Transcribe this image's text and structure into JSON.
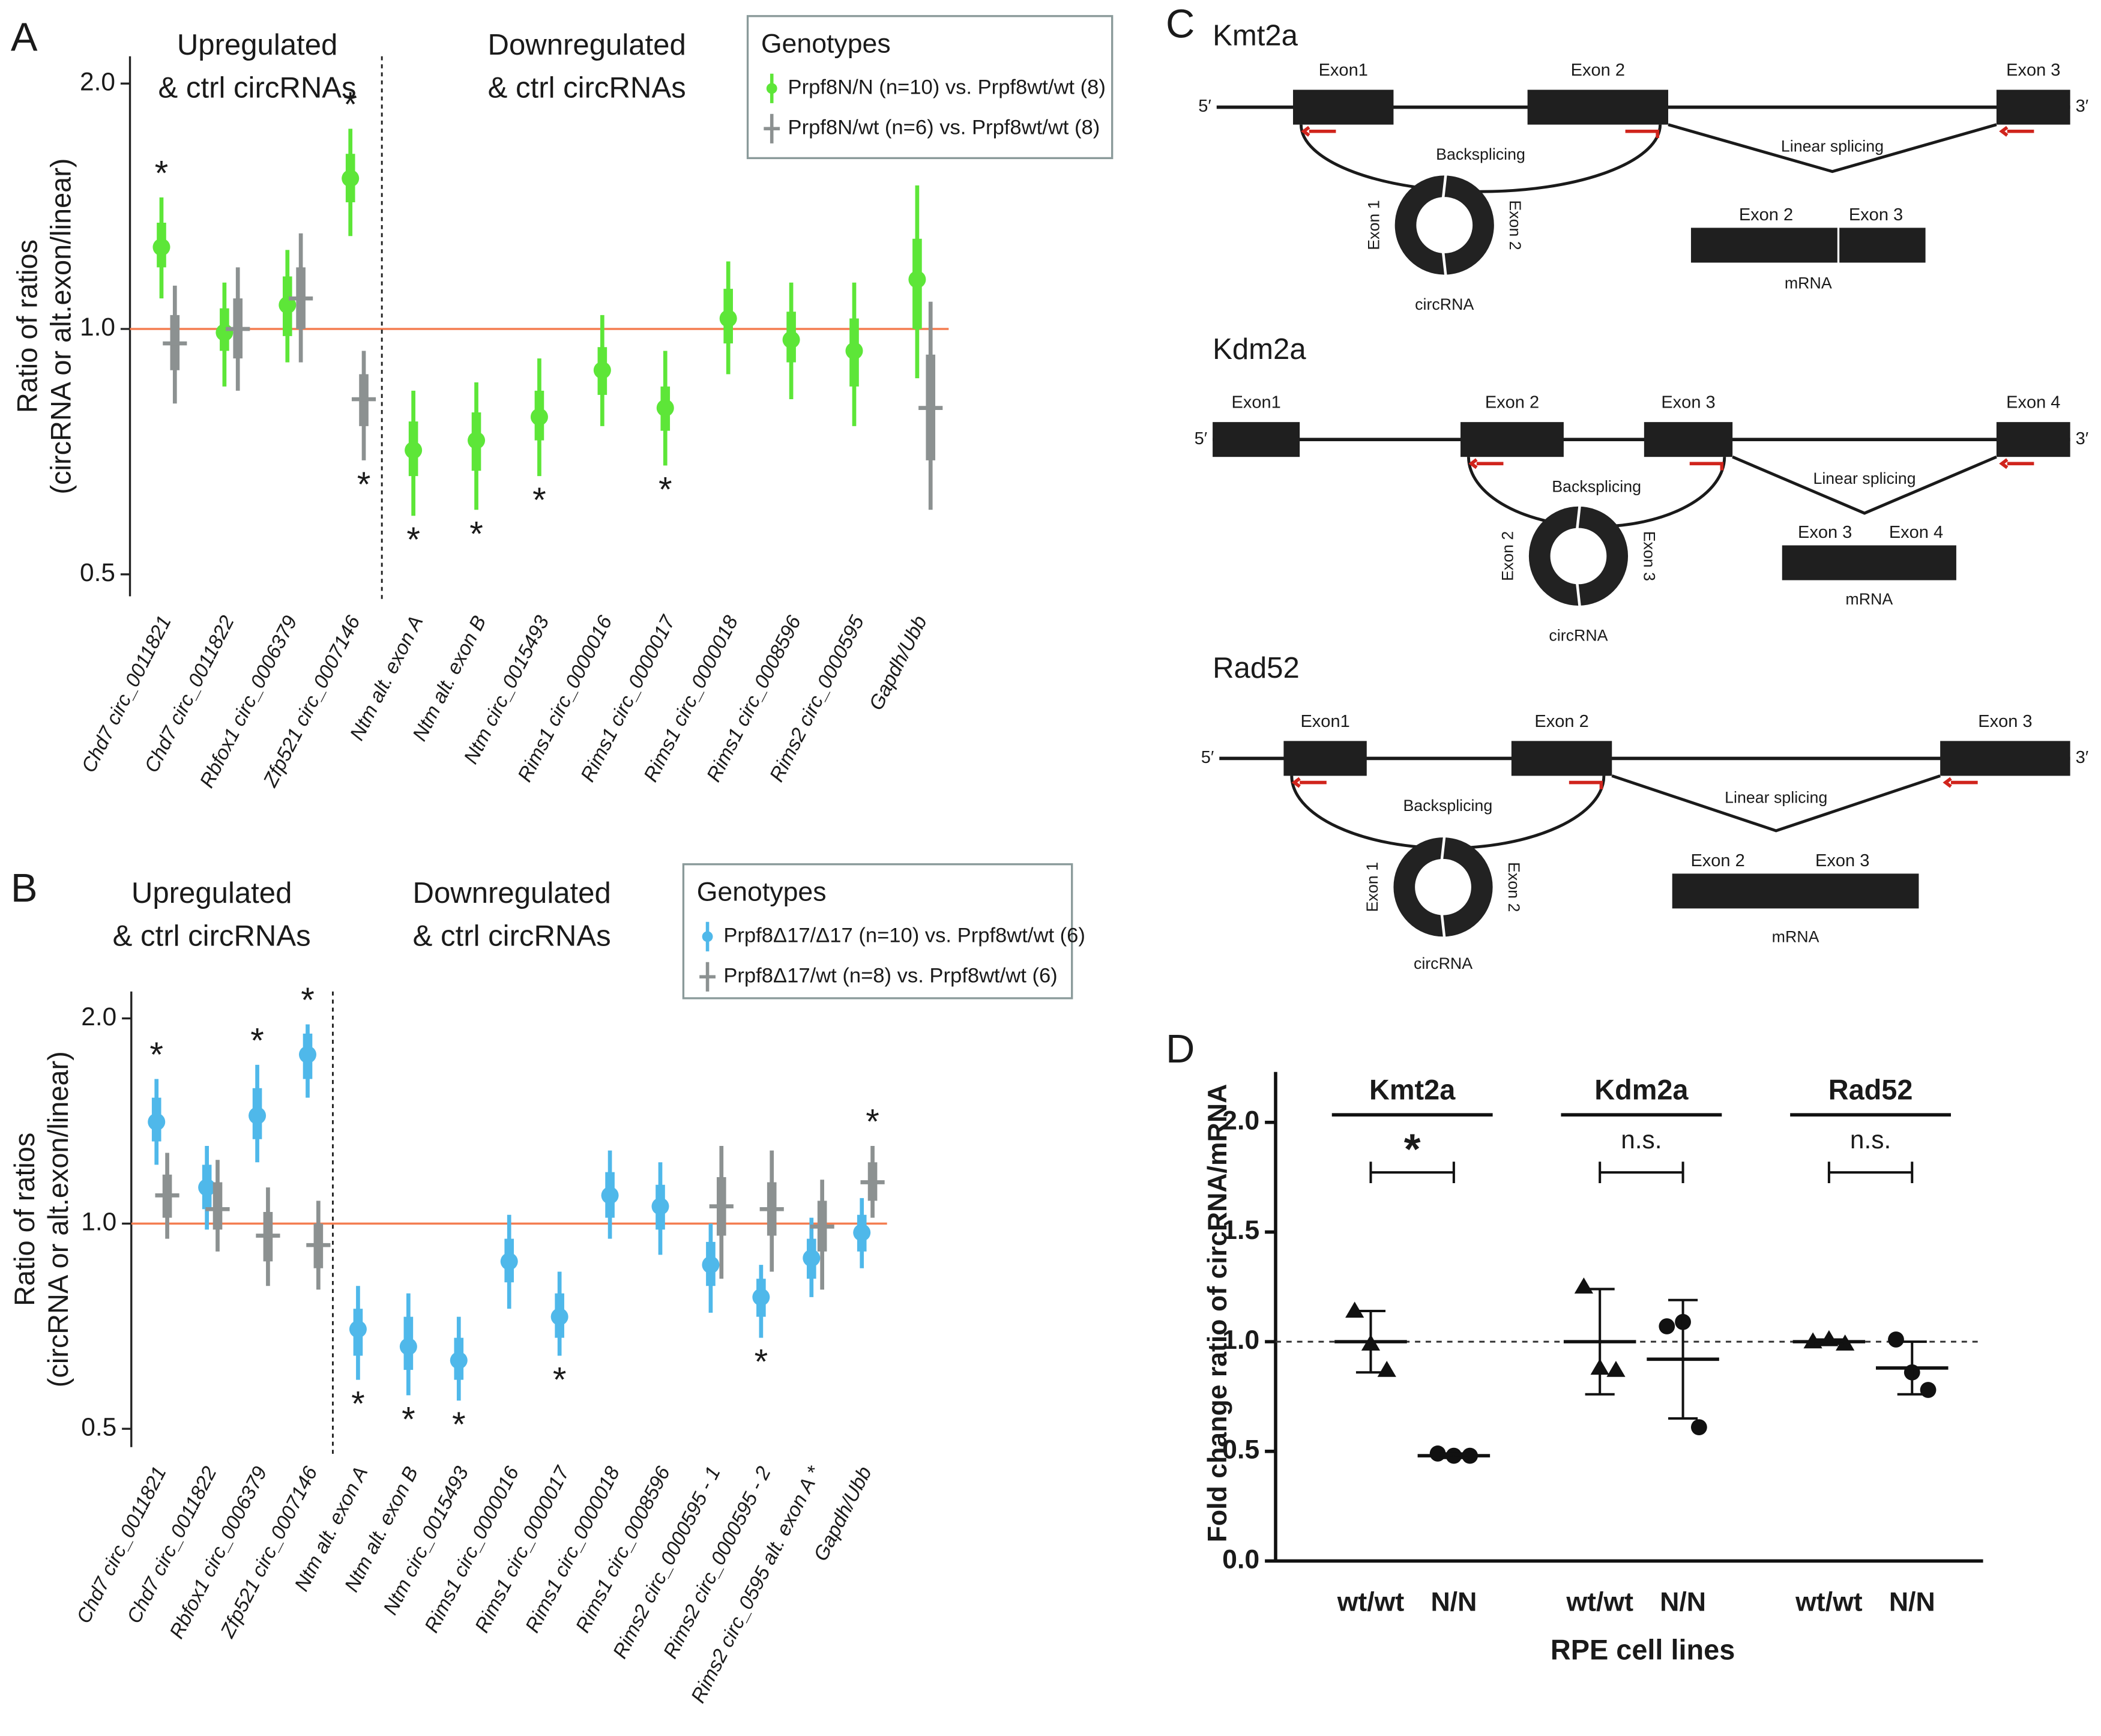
{
  "chart_data": [
    {
      "type": "interval",
      "panel": "A",
      "ylabel": [
        "Ratio of ratios",
        "(circRNA or alt.exon/linear)"
      ],
      "section_labels": [
        [
          "Upregulated",
          "& ctrl circRNAs"
        ],
        [
          "Downregulated",
          "& ctrl circRNAs"
        ]
      ],
      "categories": [
        "Chd7 circ_0011821",
        "Chd7 circ_0011822",
        "Rbfox1 circ_0006379",
        "Zfp521 circ_0007146",
        "Ntm alt. exon A",
        "Ntm alt. exon B",
        "Ntm circ_0015493",
        "Rims1 circ_0000016",
        "Rims1 circ_0000017",
        "Rims1 circ_0000018",
        "Rims1 circ_0008596",
        "Rims2 circ_0000595",
        "Gapdh/Ubb"
      ],
      "log_y": true,
      "ylim": [
        0.47,
        2.16
      ],
      "yticks": [
        0.5,
        {
          "value": 1,
          "label": "1.0"
        },
        {
          "value": 2,
          "label": "2.0"
        }
      ],
      "refline": 1,
      "refline_color": "#f47d50",
      "legend_title": "Genotypes",
      "legend": "upper right",
      "series": [
        {
          "name": "Prpf8N/N (n=10) vs. Prpf8wt/wt (8)",
          "color": "#5de638",
          "marker": "dot",
          "values": [
            1.26,
            0.99,
            1.07,
            1.53,
            0.71,
            0.73,
            0.78,
            0.89,
            0.8,
            1.03,
            0.97,
            0.94,
            1.15
          ],
          "inner": [
            [
              1.19,
              1.35
            ],
            [
              0.94,
              1.06
            ],
            [
              0.98,
              1.16
            ],
            [
              1.43,
              1.64
            ],
            [
              0.66,
              0.77
            ],
            [
              0.67,
              0.79
            ],
            [
              0.73,
              0.84
            ],
            [
              0.83,
              0.95
            ],
            [
              0.75,
              0.85
            ],
            [
              0.96,
              1.12
            ],
            [
              0.91,
              1.05
            ],
            [
              0.85,
              1.03
            ],
            [
              1.0,
              1.29
            ]
          ],
          "outer": [
            [
              1.09,
              1.45
            ],
            [
              0.85,
              1.14
            ],
            [
              0.91,
              1.25
            ],
            [
              1.3,
              1.76
            ],
            [
              0.59,
              0.84
            ],
            [
              0.6,
              0.86
            ],
            [
              0.66,
              0.92
            ],
            [
              0.76,
              1.04
            ],
            [
              0.68,
              0.94
            ],
            [
              0.88,
              1.21
            ],
            [
              0.82,
              1.14
            ],
            [
              0.76,
              1.14
            ],
            [
              0.87,
              1.5
            ]
          ],
          "labels": [
            "*",
            null,
            null,
            "*",
            "*",
            "*",
            "*",
            null,
            "*",
            null,
            null,
            null,
            null
          ]
        },
        {
          "name": "Prpf8N/wt (n=6) vs. Prpf8wt/wt (8)",
          "color": "#8c9191",
          "marker": "dash",
          "values": [
            0.96,
            1.0,
            1.09,
            0.82,
            null,
            null,
            null,
            null,
            null,
            null,
            null,
            null,
            0.8
          ],
          "inner": [
            [
              0.89,
              1.04
            ],
            [
              0.92,
              1.09
            ],
            [
              1.0,
              1.19
            ],
            [
              0.76,
              0.88
            ],
            null,
            null,
            null,
            null,
            null,
            null,
            null,
            null,
            [
              0.69,
              0.93
            ]
          ],
          "outer": [
            [
              0.81,
              1.13
            ],
            [
              0.84,
              1.19
            ],
            [
              0.91,
              1.31
            ],
            [
              0.69,
              0.94
            ],
            null,
            null,
            null,
            null,
            null,
            null,
            null,
            null,
            [
              0.6,
              1.08
            ]
          ],
          "labels": [
            null,
            null,
            null,
            "*",
            null,
            null,
            null,
            null,
            null,
            null,
            null,
            null,
            null
          ]
        }
      ]
    },
    {
      "type": "interval",
      "panel": "B",
      "ylabel": [
        "Ratio of ratios",
        "(circRNA or alt.exon/linear)"
      ],
      "section_labels": [
        [
          "Upregulated",
          "& ctrl circRNAs"
        ],
        [
          "Downregulated",
          "& ctrl circRNAs"
        ]
      ],
      "categories": [
        "Chd7 circ_0011821",
        "Chd7 circ_0011822",
        "Rbfox1 circ_0006379",
        "Zfp521 circ_0007146",
        "Ntm alt. exon A",
        "Ntm alt. exon B",
        "Ntm circ_0015493",
        "Rims1 circ_0000016",
        "Rims1 circ_0000017",
        "Rims1 circ_0000018",
        "Rims1 circ_0008596",
        "Rims2 circ_0000595 - 1",
        "Rims2 circ_0000595 - 2",
        "Rims2 circ_0595 alt. exon A *",
        "Gapdh/Ubb"
      ],
      "log_y": true,
      "ylim": [
        0.47,
        2.19
      ],
      "yticks": [
        0.5,
        {
          "value": 1,
          "label": "1.0"
        },
        {
          "value": 2,
          "label": "2.0"
        }
      ],
      "refline": 1,
      "refline_color": "#f47d50",
      "legend_title": "Genotypes",
      "legend": "upper right",
      "series": [
        {
          "name": "Prpf8Δ17/Δ17 (n=10) vs. Prpf8wt/wt (6)",
          "color": "#4fb8ea",
          "marker": "dot",
          "values": [
            1.41,
            1.13,
            1.44,
            1.77,
            0.7,
            0.66,
            0.63,
            0.88,
            0.73,
            1.1,
            1.06,
            0.87,
            0.78,
            0.89,
            0.97
          ],
          "inner": [
            [
              1.32,
              1.53
            ],
            [
              1.05,
              1.22
            ],
            [
              1.33,
              1.58
            ],
            [
              1.63,
              1.9
            ],
            [
              0.64,
              0.75
            ],
            [
              0.61,
              0.73
            ],
            [
              0.59,
              0.68
            ],
            [
              0.82,
              0.95
            ],
            [
              0.68,
              0.79
            ],
            [
              1.02,
              1.19
            ],
            [
              0.98,
              1.14
            ],
            [
              0.81,
              0.94
            ],
            [
              0.73,
              0.83
            ],
            [
              0.83,
              0.95
            ],
            [
              0.91,
              1.03
            ]
          ],
          "outer": [
            [
              1.22,
              1.63
            ],
            [
              0.98,
              1.3
            ],
            [
              1.23,
              1.71
            ],
            [
              1.53,
              1.96
            ],
            [
              0.59,
              0.81
            ],
            [
              0.56,
              0.79
            ],
            [
              0.55,
              0.73
            ],
            [
              0.75,
              1.03
            ],
            [
              0.64,
              0.85
            ],
            [
              0.95,
              1.28
            ],
            [
              0.9,
              1.23
            ],
            [
              0.74,
              1.0
            ],
            [
              0.68,
              0.87
            ],
            [
              0.78,
              1.02
            ],
            [
              0.86,
              1.09
            ]
          ],
          "labels": [
            "*",
            null,
            "*",
            "*",
            "*",
            "*",
            "*",
            null,
            "*",
            null,
            null,
            null,
            "*",
            null,
            null
          ]
        },
        {
          "name": "Prpf8Δ17/wt (n=8) vs. Prpf8wt/wt (6)",
          "color": "#8c9191",
          "marker": "dash",
          "values": [
            1.1,
            1.05,
            0.96,
            0.93,
            null,
            null,
            null,
            null,
            null,
            null,
            null,
            1.06,
            1.05,
            0.99,
            1.15
          ],
          "inner": [
            [
              1.02,
              1.18
            ],
            [
              0.98,
              1.15
            ],
            [
              0.88,
              1.04
            ],
            [
              0.86,
              1.0
            ],
            null,
            null,
            null,
            null,
            null,
            null,
            null,
            [
              0.96,
              1.17
            ],
            [
              0.96,
              1.15
            ],
            [
              0.91,
              1.08
            ],
            [
              1.08,
              1.23
            ]
          ],
          "outer": [
            [
              0.95,
              1.27
            ],
            [
              0.91,
              1.24
            ],
            [
              0.81,
              1.13
            ],
            [
              0.8,
              1.08
            ],
            null,
            null,
            null,
            null,
            null,
            null,
            null,
            [
              0.83,
              1.3
            ],
            [
              0.85,
              1.28
            ],
            [
              0.8,
              1.16
            ],
            [
              1.02,
              1.3
            ]
          ],
          "labels": [
            null,
            null,
            null,
            null,
            null,
            null,
            null,
            null,
            null,
            null,
            null,
            null,
            null,
            null,
            "*"
          ]
        }
      ]
    },
    {
      "type": "scatter",
      "panel": "D",
      "ylabel": "Fold change ratio of circRNA/mRNA",
      "xlabel": "RPE cell lines",
      "groups": [
        "Kmt2a",
        "Kdm2a",
        "Rad52"
      ],
      "group_annotations": [
        "*",
        "n.s.",
        "n.s."
      ],
      "categories": [
        "wt/wt",
        "N/N",
        "wt/wt",
        "N/N",
        "wt/wt",
        "N/N"
      ],
      "markers": [
        "triangle",
        "circle",
        "triangle",
        "circle",
        "triangle",
        "circle"
      ],
      "values": [
        [
          1.14,
          0.99,
          0.87
        ],
        [
          0.49,
          0.48,
          0.48
        ],
        [
          1.25,
          0.88,
          0.87
        ],
        [
          1.07,
          1.09,
          0.61
        ],
        [
          1.0,
          1.01,
          0.99
        ],
        [
          1.01,
          0.86,
          0.78
        ]
      ],
      "means": [
        1.0,
        0.48,
        1.0,
        0.92,
        1.0,
        0.88
      ],
      "sd": [
        0.14,
        0.01,
        0.24,
        0.27,
        0.01,
        0.12
      ],
      "color": "#111111",
      "refline": 1,
      "ylim": [
        0,
        2.23
      ],
      "yticks": [
        {
          "value": 0,
          "label": "0.0"
        },
        0.5,
        {
          "value": 1,
          "label": "1.0"
        },
        1.5,
        {
          "value": 2,
          "label": "2.0"
        }
      ]
    }
  ],
  "diagram": {
    "panel": "C",
    "genes": [
      {
        "name": "Kmt2a",
        "five": "5′",
        "three": "3′",
        "exons": [
          "Exon1",
          "Exon 2",
          "Exon 3"
        ],
        "backsplicing": "Backsplicing",
        "linear": "Linear splicing",
        "circ_exons": [
          "Exon 1",
          "Exon 2"
        ],
        "circ_label": "circRNA",
        "mrna_exons": [
          "Exon 2",
          "Exon 3"
        ],
        "mrna_label": "mRNA"
      },
      {
        "name": "Kdm2a",
        "five": "5′",
        "three": "3′",
        "exons": [
          "Exon1",
          "Exon 2",
          "Exon 3",
          "Exon 4"
        ],
        "backsplicing": "Backsplicing",
        "linear": "Linear splicing",
        "circ_exons": [
          "Exon 2",
          "Exon 3"
        ],
        "circ_label": "circRNA",
        "mrna_exons": [
          "Exon 3",
          "Exon 4"
        ],
        "mrna_label": "mRNA"
      },
      {
        "name": "Rad52",
        "five": "5′",
        "three": "3′",
        "exons": [
          "Exon1",
          "Exon 2",
          "Exon 3"
        ],
        "backsplicing": "Backsplicing",
        "linear": "Linear splicing",
        "circ_exons": [
          "Exon 1",
          "Exon 2"
        ],
        "circ_label": "circRNA",
        "mrna_exons": [
          "Exon 2",
          "Exon 3"
        ],
        "mrna_label": "mRNA"
      }
    ]
  }
}
